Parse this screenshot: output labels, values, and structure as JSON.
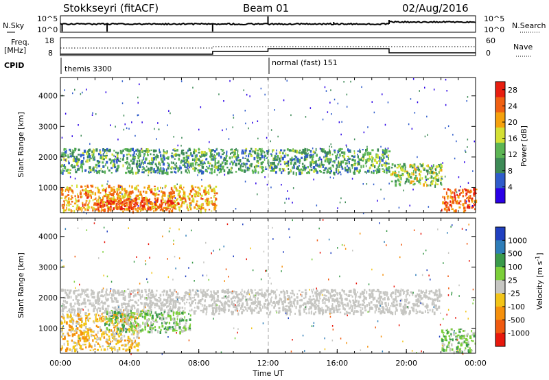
{
  "header": {
    "station": "Stokkseyri (fitACF)",
    "beam": "Beam 01",
    "date": "02/Aug/2016"
  },
  "status_panels": {
    "nsky_label": "N.Sky",
    "nsky_ticks": [
      "10^5",
      "10^0"
    ],
    "nsearch_label": "N.Search",
    "nsearch_ticks": [
      "10^5",
      "10^0"
    ],
    "freq_label": "Freq.",
    "freq_unit": "[MHz]",
    "freq_ticks": [
      18,
      8
    ],
    "nave_label": "Nave",
    "nave_ticks": [
      60,
      0
    ],
    "cpid_label": "CPID",
    "cpid_modes": [
      {
        "name": "themis 3300",
        "start_hour": 0.0
      },
      {
        "name": "normal (fast) 151",
        "start_hour": 12.0
      }
    ],
    "freq_step_hours": [
      8.8,
      12.0,
      19.0
    ]
  },
  "chart_data": [
    {
      "type": "heatmap",
      "panel": "power",
      "ylabel": "Slant Range [km]",
      "xlabel": "",
      "xlim_hours": [
        0,
        24
      ],
      "ylim_km": [
        180,
        4600
      ],
      "y_ticks": [
        1000,
        2000,
        3000,
        4000
      ],
      "colorbar": {
        "label": "Power [dB]",
        "ticks": [
          4,
          8,
          12,
          16,
          20,
          24,
          28
        ],
        "range": [
          0,
          30
        ],
        "colors": [
          "#2a00e6",
          "#2f5ccb",
          "#3d8a56",
          "#5cb554",
          "#d4e034",
          "#f5a10d",
          "#f06012",
          "#e81e10"
        ]
      },
      "features": [
        {
          "kind": "near-range echoes",
          "t_start_h": 0.0,
          "t_end_h": 9.0,
          "range_km": [
            250,
            1100
          ],
          "power_db": 22
        },
        {
          "kind": "E-region band",
          "t_start_h": 2.0,
          "t_end_h": 6.5,
          "range_km": [
            320,
            650
          ],
          "power_db": 28
        },
        {
          "kind": "F-region band",
          "t_start_h": 0.0,
          "t_end_h": 19.0,
          "range_km": [
            1500,
            2300
          ],
          "power_db": 10
        },
        {
          "kind": "mid band",
          "t_start_h": 19.0,
          "t_end_h": 22.0,
          "range_km": [
            1100,
            1800
          ],
          "power_db": 14
        },
        {
          "kind": "late near-range",
          "t_start_h": 22.0,
          "t_end_h": 24.0,
          "range_km": [
            250,
            1000
          ],
          "power_db": 26
        }
      ]
    },
    {
      "type": "heatmap",
      "panel": "velocity",
      "ylabel": "Slant Range [km]",
      "xlabel": "Time UT",
      "xlim_hours": [
        0,
        24
      ],
      "x_ticks": [
        "00:00",
        "04:00",
        "08:00",
        "12:00",
        "16:00",
        "20:00",
        "00:00"
      ],
      "ylim_km": [
        180,
        4600
      ],
      "y_ticks": [
        1000,
        2000,
        3000,
        4000
      ],
      "colorbar": {
        "label": "Velocity [m s^-1]",
        "ticks": [
          1000,
          500,
          100,
          25,
          -25,
          -100,
          -500,
          -1000
        ],
        "colors": [
          "#2040c0",
          "#2e7db8",
          "#3a9a4a",
          "#7ccf3a",
          "#c6c6c2",
          "#f2c418",
          "#f5900c",
          "#f05a10",
          "#e8180c"
        ]
      },
      "features": [
        {
          "kind": "ground scatter",
          "t_start_h": 0.0,
          "t_end_h": 22.0,
          "range_km": [
            1500,
            2300
          ],
          "velocity_ms": 0
        },
        {
          "kind": "negative drift",
          "t_start_h": 0.0,
          "t_end_h": 4.5,
          "range_km": [
            300,
            1500
          ],
          "velocity_ms": -100
        },
        {
          "kind": "positive drift",
          "t_start_h": 2.5,
          "t_end_h": 7.5,
          "range_km": [
            900,
            1600
          ],
          "velocity_ms": 150
        },
        {
          "kind": "late positive",
          "t_start_h": 22.0,
          "t_end_h": 24.0,
          "range_km": [
            250,
            1000
          ],
          "velocity_ms": 300
        }
      ]
    }
  ]
}
